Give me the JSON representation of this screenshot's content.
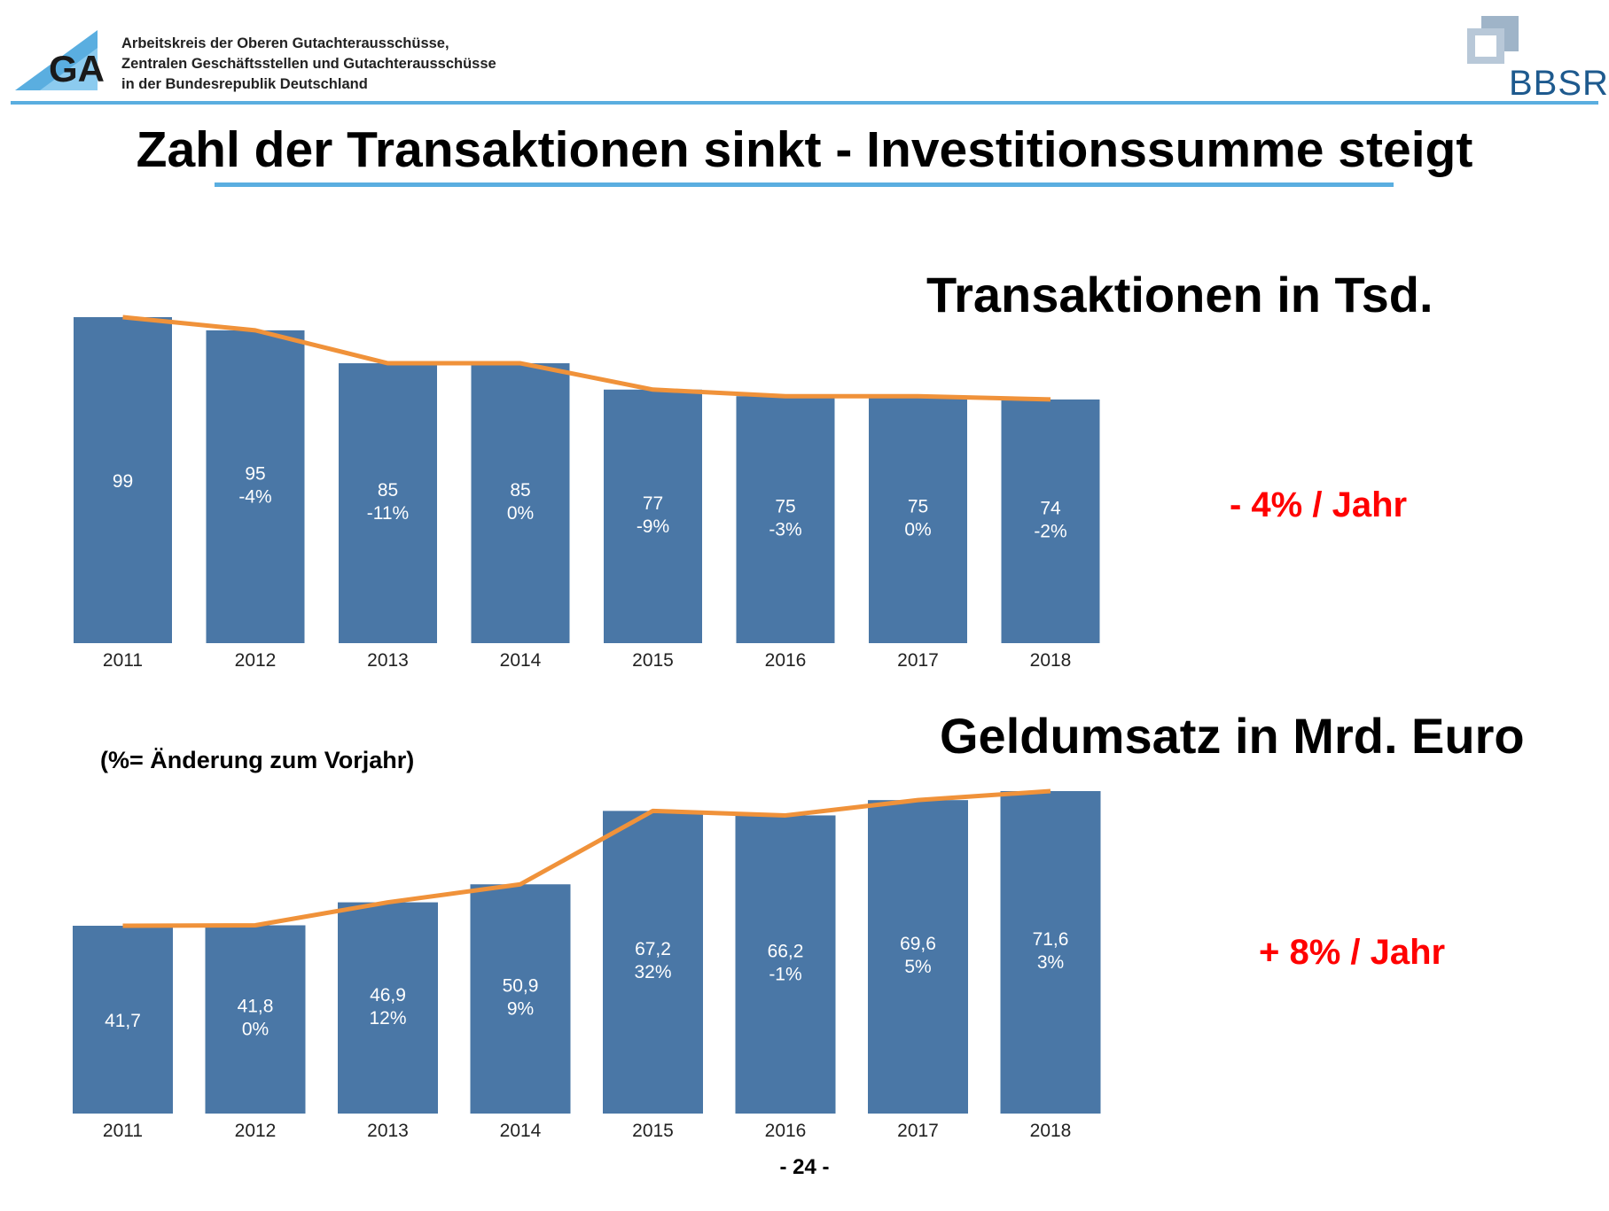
{
  "header": {
    "org_lines": [
      "Arbeitskreis der Oberen Gutachterausschüsse,",
      "Zentralen Geschäftsstellen und Gutachterausschüsse",
      "in der Bundesrepublik Deutschland"
    ],
    "logo_left_letters": "GA",
    "logo_right_text": "BBSR"
  },
  "page_title": "Zahl der Transaktionen sinkt - Investitionssumme steigt",
  "note": "(%= Änderung zum Vorjahr)",
  "page_number": "- 24 -",
  "colors": {
    "bar": "#4a77a6",
    "line": "#f0923a",
    "accent_blue": "#5aaee0",
    "trend_red": "#ff0000",
    "bbsr_blue": "#1e5a8e"
  },
  "chart_data": [
    {
      "type": "bar",
      "title": "Transaktionen in Tsd.",
      "annotation": "- 4% / Jahr",
      "categories": [
        "2011",
        "2012",
        "2013",
        "2014",
        "2015",
        "2016",
        "2017",
        "2018"
      ],
      "values": [
        99,
        95,
        85,
        85,
        77,
        75,
        75,
        74
      ],
      "value_labels": [
        "99",
        "95",
        "85",
        "85",
        "77",
        "75",
        "75",
        "74"
      ],
      "change_labels": [
        "",
        "-4%",
        "-11%",
        "0%",
        "-9%",
        "-3%",
        "0%",
        "-2%"
      ],
      "overlay_line": {
        "type": "line",
        "values": [
          99,
          95,
          85,
          85,
          77,
          75,
          75,
          74
        ]
      },
      "ylim": [
        0,
        99
      ],
      "grid": false
    },
    {
      "type": "bar",
      "title": "Geldumsatz in Mrd. Euro",
      "annotation": "+ 8% / Jahr",
      "categories": [
        "2011",
        "2012",
        "2013",
        "2014",
        "2015",
        "2016",
        "2017",
        "2018"
      ],
      "values": [
        41.7,
        41.8,
        46.9,
        50.9,
        67.2,
        66.2,
        69.6,
        71.6
      ],
      "value_labels": [
        "41,7",
        "41,8",
        "46,9",
        "50,9",
        "67,2",
        "66,2",
        "69,6",
        "71,6"
      ],
      "change_labels": [
        "",
        "0%",
        "12%",
        "9%",
        "32%",
        "-1%",
        "5%",
        "3%"
      ],
      "overlay_line": {
        "type": "line",
        "values": [
          41.7,
          41.8,
          46.9,
          50.9,
          67.2,
          66.2,
          69.6,
          71.6
        ]
      },
      "ylim": [
        0,
        71.6
      ],
      "grid": false
    }
  ]
}
